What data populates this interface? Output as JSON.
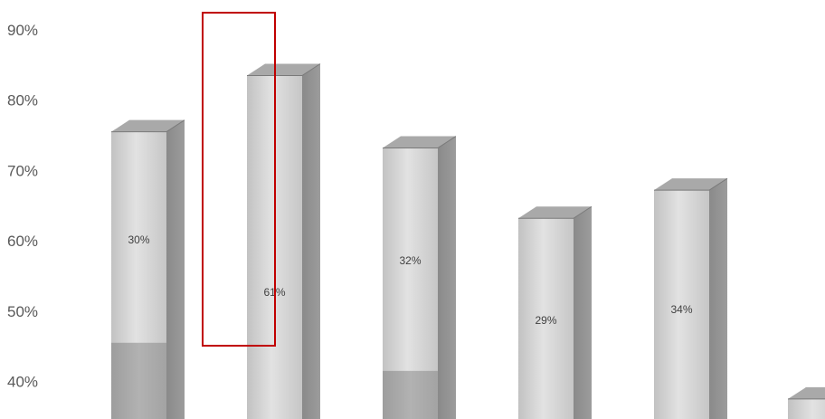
{
  "chart_data": {
    "type": "bar",
    "title": "",
    "xlabel": "",
    "ylabel": "",
    "ylim": [
      35,
      92
    ],
    "yticks": [
      "40%",
      "50%",
      "60%",
      "70%",
      "80%",
      "90%"
    ],
    "ytick_values": [
      40,
      50,
      60,
      70,
      80,
      90
    ],
    "grid": false,
    "legend": "none",
    "style": "3d-column",
    "series": [
      {
        "values": [
          75.5,
          83.5,
          73.2,
          63.2,
          67.2,
          37.5
        ],
        "labels": [
          "30%",
          "61%",
          "32%",
          "29%",
          "34%",
          ""
        ],
        "inner_segment_top": [
          45.5,
          null,
          41.5,
          null,
          null,
          null
        ]
      }
    ],
    "highlight": {
      "bar_index": 1,
      "from": 45,
      "to": 92,
      "color": "#c00000"
    },
    "colors": {
      "bar_light": "#dcdcdc",
      "bar_mid": "#c9c9c9",
      "bar_side": "#8e8e8e",
      "bar_top": "#a9a9a9",
      "inner_segment": "#a7a7a7",
      "text": "#595959"
    }
  }
}
